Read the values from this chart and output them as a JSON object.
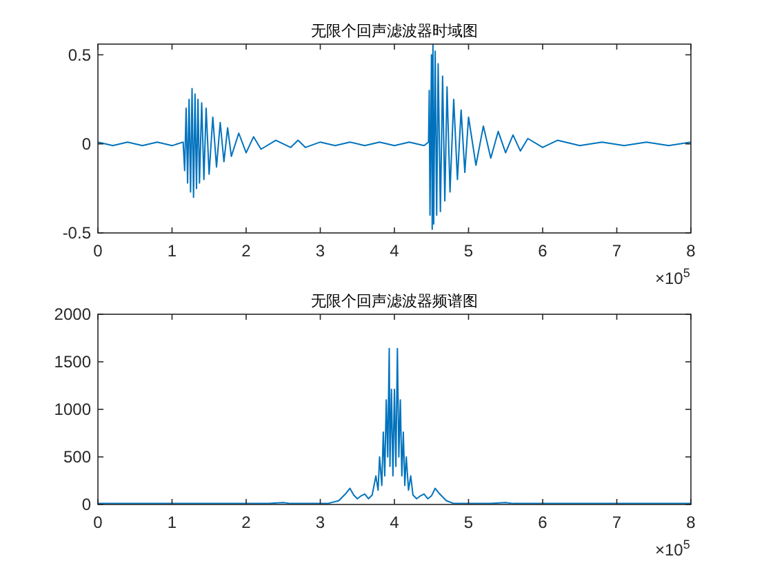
{
  "chart_data": [
    {
      "type": "line",
      "title": "无限个回声滤波器时域图",
      "color": "#0072bd",
      "xlim": [
        0,
        8
      ],
      "ylim": [
        -0.5,
        0.56
      ],
      "xticks": [
        0,
        1,
        2,
        3,
        4,
        5,
        6,
        7,
        8
      ],
      "yticks": [
        -0.5,
        0,
        0.5
      ],
      "annotations": [
        "×10$^{5}$"
      ],
      "x": [
        0,
        0.2,
        0.4,
        0.6,
        0.8,
        1.0,
        1.15,
        1.17,
        1.19,
        1.21,
        1.23,
        1.25,
        1.27,
        1.29,
        1.31,
        1.33,
        1.35,
        1.37,
        1.4,
        1.43,
        1.46,
        1.5,
        1.55,
        1.6,
        1.65,
        1.7,
        1.75,
        1.8,
        1.9,
        2.0,
        2.1,
        2.2,
        2.4,
        2.6,
        2.7,
        2.8,
        3.0,
        3.2,
        3.4,
        3.6,
        3.8,
        4.0,
        4.2,
        4.4,
        4.46,
        4.47,
        4.48,
        4.5,
        4.51,
        4.52,
        4.53,
        4.55,
        4.57,
        4.59,
        4.62,
        4.65,
        4.68,
        4.71,
        4.75,
        4.8,
        4.85,
        4.9,
        4.95,
        5.0,
        5.1,
        5.2,
        5.3,
        5.4,
        5.5,
        5.6,
        5.7,
        5.8,
        6.0,
        6.2,
        6.5,
        6.8,
        7.1,
        7.4,
        7.7,
        8.0
      ],
      "values": [
        0.01,
        -0.01,
        0.01,
        -0.01,
        0.01,
        -0.01,
        0.01,
        -0.15,
        0.2,
        -0.22,
        0.25,
        -0.27,
        0.31,
        -0.3,
        0.28,
        -0.25,
        0.25,
        -0.22,
        0.23,
        -0.2,
        0.2,
        -0.17,
        0.15,
        -0.13,
        0.12,
        -0.1,
        0.09,
        -0.07,
        0.06,
        -0.05,
        0.04,
        -0.03,
        0.02,
        -0.02,
        0.02,
        -0.02,
        0.01,
        -0.01,
        0.01,
        -0.01,
        0.01,
        -0.01,
        0.01,
        -0.01,
        0.01,
        0.3,
        -0.4,
        0.5,
        -0.48,
        0.56,
        -0.45,
        0.52,
        -0.4,
        0.45,
        -0.38,
        0.38,
        -0.32,
        0.32,
        -0.27,
        0.25,
        -0.2,
        0.19,
        -0.16,
        0.15,
        -0.12,
        0.1,
        -0.08,
        0.07,
        -0.05,
        0.05,
        -0.04,
        0.03,
        -0.02,
        0.02,
        -0.01,
        0.01,
        -0.01,
        0.01,
        -0.01,
        0.01
      ]
    },
    {
      "type": "line",
      "title": "无限个回声滤波器频谱图",
      "color": "#0072bd",
      "xlim": [
        0,
        8
      ],
      "ylim": [
        0,
        2000
      ],
      "xticks": [
        0,
        1,
        2,
        3,
        4,
        5,
        6,
        7,
        8
      ],
      "yticks": [
        0,
        500,
        1000,
        1500,
        2000
      ],
      "annotations": [
        "×10$^{5}$"
      ],
      "x": [
        0,
        0.5,
        1.0,
        1.5,
        2.0,
        2.3,
        2.5,
        2.6,
        2.9,
        3.1,
        3.25,
        3.35,
        3.4,
        3.45,
        3.5,
        3.55,
        3.6,
        3.65,
        3.7,
        3.75,
        3.78,
        3.8,
        3.83,
        3.85,
        3.87,
        3.89,
        3.91,
        3.93,
        3.94,
        3.96,
        3.98,
        4.0,
        4.02,
        4.04,
        4.06,
        4.08,
        4.1,
        4.12,
        4.14,
        4.16,
        4.19,
        4.22,
        4.25,
        4.3,
        4.35,
        4.4,
        4.45,
        4.5,
        4.55,
        4.6,
        4.65,
        4.7,
        4.8,
        5.0,
        5.3,
        5.5,
        5.6,
        6.0,
        6.5,
        7.0,
        7.5,
        8.0
      ],
      "values": [
        10,
        10,
        10,
        10,
        10,
        10,
        20,
        10,
        10,
        10,
        40,
        120,
        170,
        100,
        60,
        90,
        110,
        60,
        100,
        300,
        150,
        500,
        200,
        760,
        300,
        1100,
        500,
        1640,
        400,
        1210,
        300,
        1210,
        400,
        1640,
        500,
        1100,
        300,
        760,
        200,
        500,
        150,
        300,
        100,
        60,
        90,
        110,
        60,
        90,
        170,
        120,
        80,
        40,
        10,
        10,
        10,
        20,
        10,
        10,
        10,
        10,
        10,
        10
      ]
    }
  ]
}
